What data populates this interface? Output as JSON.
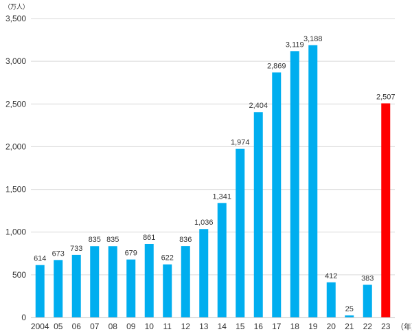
{
  "chart_data": {
    "type": "bar",
    "ylabel": "（万人）",
    "x_unit": "（年）",
    "categories": [
      "2004",
      "05",
      "06",
      "07",
      "08",
      "09",
      "10",
      "11",
      "12",
      "13",
      "14",
      "15",
      "16",
      "17",
      "18",
      "19",
      "20",
      "21",
      "22",
      "23"
    ],
    "values": [
      614,
      673,
      733,
      835,
      835,
      679,
      861,
      622,
      836,
      1036,
      1341,
      1974,
      2404,
      2869,
      3119,
      3188,
      412,
      25,
      383,
      2507
    ],
    "value_labels": [
      "614",
      "673",
      "733",
      "835",
      "835",
      "679",
      "861",
      "622",
      "836",
      "1,036",
      "1,341",
      "1,974",
      "2,404",
      "2,869",
      "3,119",
      "3,188",
      "412",
      "25",
      "383",
      "2,507"
    ],
    "y_ticks": [
      0,
      500,
      1000,
      1500,
      2000,
      2500,
      3000,
      3500
    ],
    "y_tick_labels": [
      "0",
      "500",
      "1,000",
      "1,500",
      "2,000",
      "2,500",
      "3,000",
      "3,500"
    ],
    "ylim": [
      0,
      3500
    ],
    "grid": "horizontal",
    "colors": {
      "default": "#00AEEF",
      "highlight": "#FF0000",
      "highlight_index": 19
    }
  }
}
